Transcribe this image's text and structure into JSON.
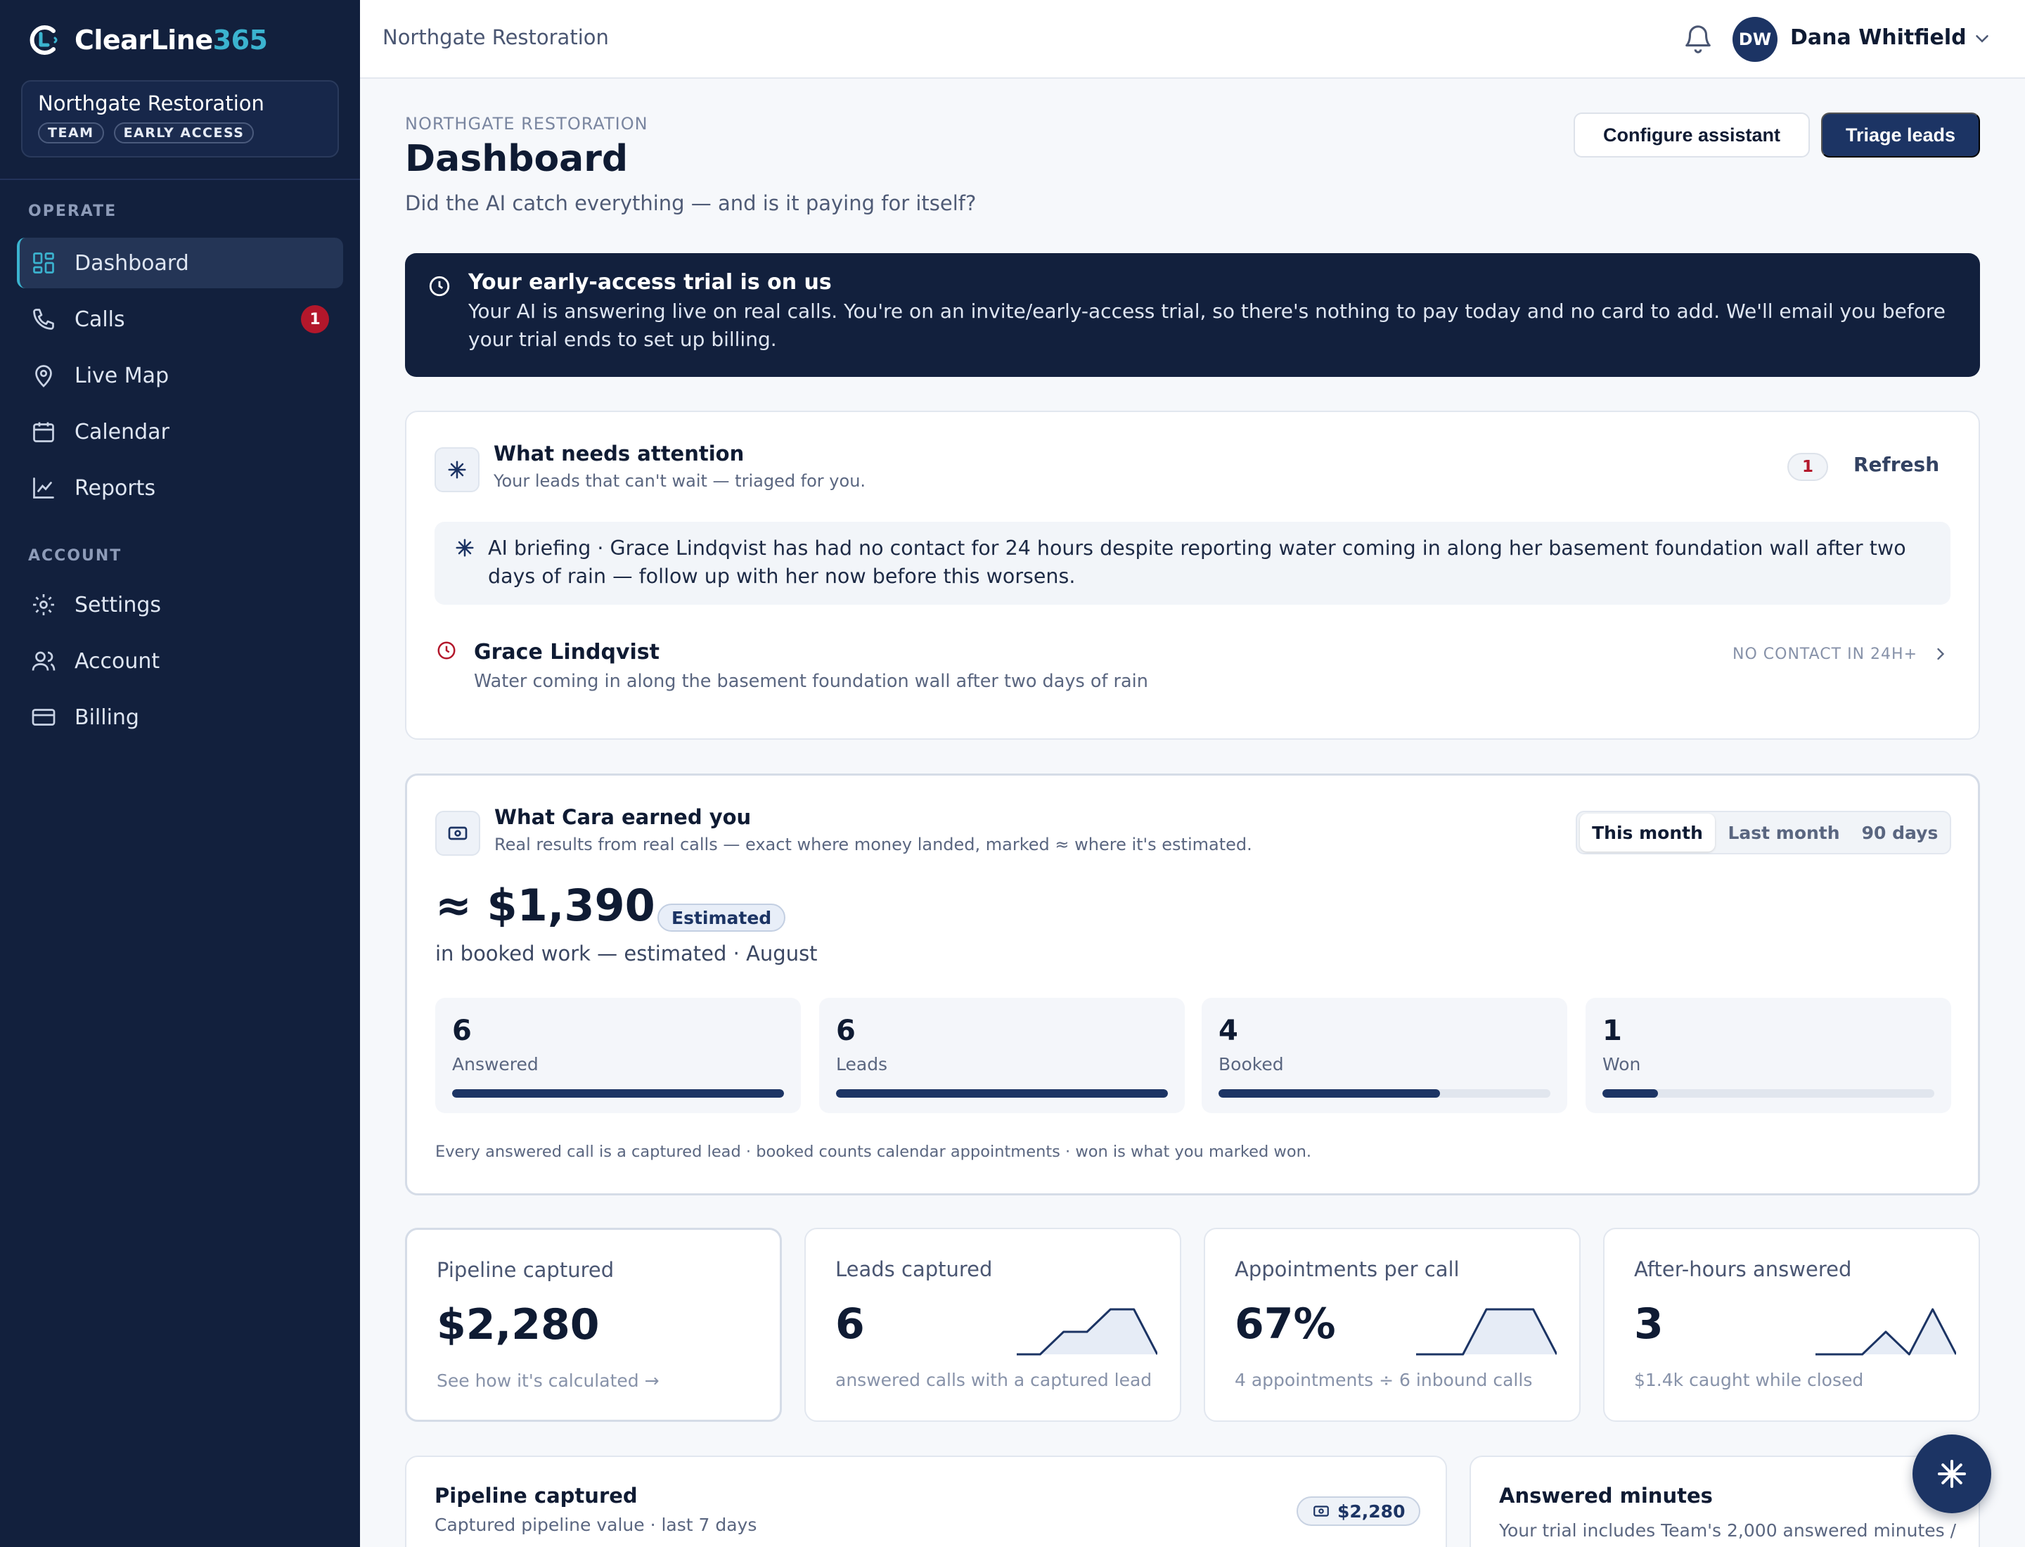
{
  "app": {
    "name_main": "ClearLine",
    "name_accent": "365",
    "org_name": "Northgate Restoration",
    "badges": [
      "TEAM",
      "EARLY ACCESS"
    ]
  },
  "sidebar": {
    "sections": [
      {
        "label": "OPERATE",
        "items": [
          {
            "label": "Dashboard",
            "icon": "grid-icon",
            "active": true
          },
          {
            "label": "Calls",
            "icon": "phone-icon",
            "count": "1"
          },
          {
            "label": "Live Map",
            "icon": "map-pin-icon"
          },
          {
            "label": "Calendar",
            "icon": "calendar-icon"
          },
          {
            "label": "Reports",
            "icon": "chart-line-icon"
          }
        ]
      },
      {
        "label": "ACCOUNT",
        "items": [
          {
            "label": "Settings",
            "icon": "gear-icon"
          },
          {
            "label": "Account",
            "icon": "users-icon"
          },
          {
            "label": "Billing",
            "icon": "credit-card-icon"
          }
        ]
      }
    ]
  },
  "topbar": {
    "org": "Northgate Restoration",
    "user_initials": "DW",
    "user_name": "Dana Whitfield"
  },
  "header": {
    "eyebrow": "NORTHGATE RESTORATION",
    "title": "Dashboard",
    "subtitle": "Did the AI catch everything — and is it paying for itself?",
    "configure_label": "Configure assistant",
    "triage_label": "Triage leads"
  },
  "trial": {
    "title": "Your early-access trial is on us",
    "body": "Your AI is answering live on real calls. You're on an invite/early-access trial, so there's nothing to pay today and no card to add. We'll email you before your trial ends to set up billing."
  },
  "attention": {
    "title": "What needs attention",
    "subtitle": "Your leads that can't wait — triaged for you.",
    "count": "1",
    "refresh_label": "Refresh",
    "briefing": "AI briefing · Grace Lindqvist has had no contact for 24 hours despite reporting water coming in along her basement foundation wall after two days of rain — follow up with her now before this worsens.",
    "lead": {
      "name": "Grace Lindqvist",
      "description": "Water coming in along the basement foundation wall after two days of rain",
      "status": "NO CONTACT IN 24H+"
    }
  },
  "earned": {
    "title": "What Cara earned you",
    "subtitle": "Real results from real calls — exact where money landed, marked ≈ where it's estimated.",
    "ranges": [
      "This month",
      "Last month",
      "90 days"
    ],
    "selected_range": "This month",
    "value": "≈ $1,390",
    "estimated_label": "Estimated",
    "caption": "in booked work — estimated · August",
    "funnel": [
      {
        "value": "6",
        "label": "Answered",
        "fill": 1.0
      },
      {
        "value": "6",
        "label": "Leads",
        "fill": 1.0
      },
      {
        "value": "4",
        "label": "Booked",
        "fill": 0.667
      },
      {
        "value": "1",
        "label": "Won",
        "fill": 0.167
      }
    ],
    "note": "Every answered call is a captured lead · booked counts calendar appointments · won is what you marked won."
  },
  "metrics": [
    {
      "label": "Pipeline captured",
      "value": "$2,280",
      "foot": "See how it's calculated →",
      "spark": null
    },
    {
      "label": "Leads captured",
      "value": "6",
      "foot": "answered calls with a captured lead",
      "spark": [
        0,
        0,
        1,
        1,
        2,
        2,
        0
      ]
    },
    {
      "label": "Appointments per call",
      "value": "67%",
      "foot": "4 appointments ÷ 6 inbound calls",
      "spark": [
        0,
        0,
        0,
        2,
        2,
        2,
        0
      ]
    },
    {
      "label": "After-hours answered",
      "value": "3",
      "foot": "$1.4k caught while closed",
      "spark": [
        0,
        0,
        0,
        1,
        0,
        2,
        0
      ]
    }
  ],
  "pipeline_card": {
    "title": "Pipeline captured",
    "subtitle": "Captured pipeline value · last 7 days",
    "pill": "$2,280"
  },
  "minutes_card": {
    "title": "Answered minutes",
    "subtitle": "Your trial includes Team's 2,000 answered minutes /"
  },
  "colors": {
    "sidebar": "#12203d",
    "accent": "#3bb3cf",
    "primary": "#1c3464",
    "alert": "#b3172b"
  }
}
